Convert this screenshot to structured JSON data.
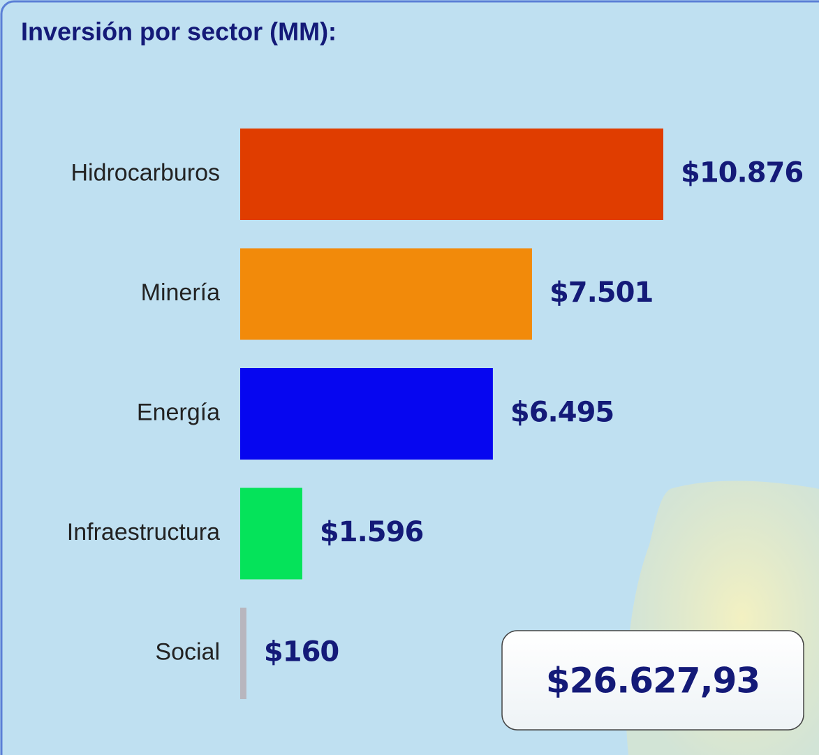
{
  "chart_data": {
    "type": "bar",
    "orientation": "horizontal",
    "title": "Inversión por sector (MM):",
    "categories": [
      "Hidrocarburos",
      "Minería",
      "Energía",
      "Infraestructura",
      "Social"
    ],
    "values": [
      10876,
      7501,
      6495,
      1596,
      160
    ],
    "value_labels": [
      "$10.876",
      "$7.501",
      "$6.495",
      "$1.596",
      "$160"
    ],
    "colors": [
      "#e03d00",
      "#f28a0a",
      "#0606f0",
      "#05e35a",
      "#b8b6be"
    ],
    "total": "$26.627,93"
  }
}
